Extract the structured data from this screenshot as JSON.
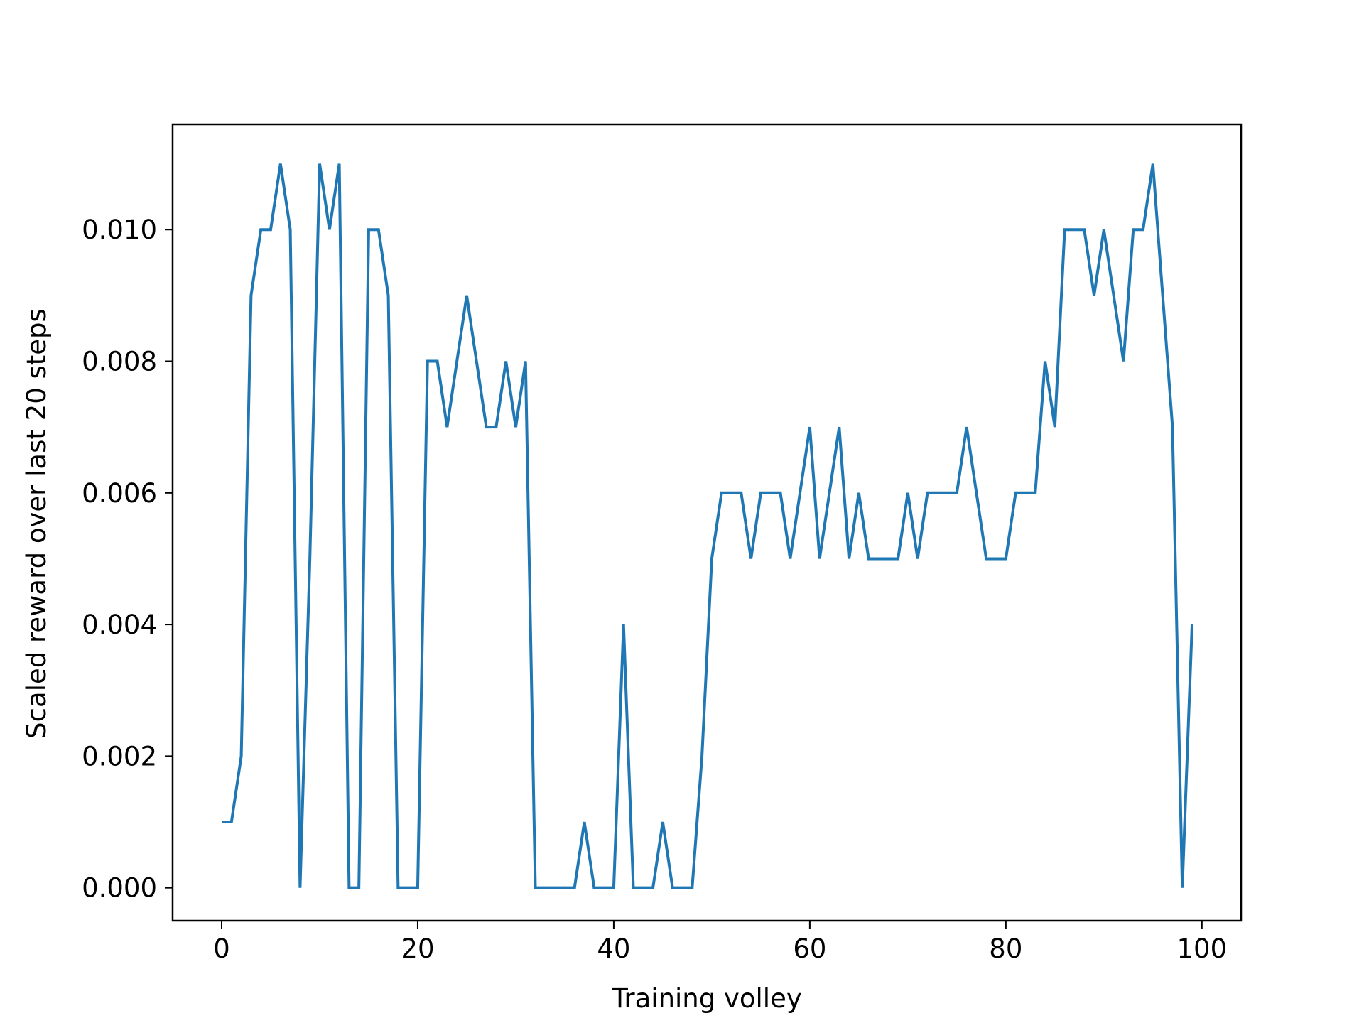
{
  "chart_data": {
    "type": "line",
    "title": "",
    "xlabel": "Training volley",
    "ylabel": "Scaled reward over last 20 steps",
    "xlim": [
      -5,
      104
    ],
    "ylim": [
      -0.0005,
      0.0116
    ],
    "xticks": [
      0,
      20,
      40,
      60,
      80,
      100
    ],
    "yticks": [
      0.0,
      0.002,
      0.004,
      0.006,
      0.008,
      0.01
    ],
    "xtick_labels": [
      "0",
      "20",
      "40",
      "60",
      "80",
      "100"
    ],
    "ytick_labels": [
      "0.000",
      "0.002",
      "0.004",
      "0.006",
      "0.008",
      "0.010"
    ],
    "grid": false,
    "legend": null,
    "line_color": "#1f77b4",
    "series": [
      {
        "x": [
          0,
          1,
          2,
          3,
          4,
          5,
          6,
          7,
          8,
          9,
          10,
          11,
          12,
          13,
          14,
          15,
          16,
          17,
          18,
          19,
          20,
          21,
          22,
          23,
          24,
          25,
          26,
          27,
          28,
          29,
          30,
          31,
          32,
          33,
          34,
          35,
          36,
          37,
          38,
          39,
          40,
          41,
          42,
          43,
          44,
          45,
          46,
          47,
          48,
          49,
          50,
          51,
          52,
          53,
          54,
          55,
          56,
          57,
          58,
          59,
          60,
          61,
          62,
          63,
          64,
          65,
          66,
          67,
          68,
          69,
          70,
          71,
          72,
          73,
          74,
          75,
          76,
          77,
          78,
          79,
          80,
          81,
          82,
          83,
          84,
          85,
          86,
          87,
          88,
          89,
          90,
          91,
          92,
          93,
          94,
          95,
          96,
          97,
          98,
          99
        ],
        "values": [
          0.001,
          0.001,
          0.002,
          0.009,
          0.01,
          0.01,
          0.011,
          0.01,
          0.0,
          0.005,
          0.011,
          0.01,
          0.011,
          0.0,
          0.0,
          0.01,
          0.01,
          0.009,
          0.0,
          0.0,
          0.0,
          0.008,
          0.008,
          0.007,
          0.008,
          0.009,
          0.008,
          0.007,
          0.007,
          0.008,
          0.007,
          0.008,
          0.0,
          0.0,
          0.0,
          0.0,
          0.0,
          0.001,
          0.0,
          0.0,
          0.0,
          0.004,
          0.0,
          0.0,
          0.0,
          0.001,
          0.0,
          0.0,
          0.0,
          0.002,
          0.005,
          0.006,
          0.006,
          0.006,
          0.005,
          0.006,
          0.006,
          0.006,
          0.005,
          0.006,
          0.007,
          0.005,
          0.006,
          0.007,
          0.005,
          0.006,
          0.005,
          0.005,
          0.005,
          0.005,
          0.006,
          0.005,
          0.006,
          0.006,
          0.006,
          0.006,
          0.007,
          0.006,
          0.005,
          0.005,
          0.005,
          0.006,
          0.006,
          0.006,
          0.008,
          0.007,
          0.01,
          0.01,
          0.01,
          0.009,
          0.01,
          0.009,
          0.008,
          0.01,
          0.01,
          0.011,
          0.009,
          0.007,
          0.0,
          0.004
        ]
      }
    ]
  }
}
